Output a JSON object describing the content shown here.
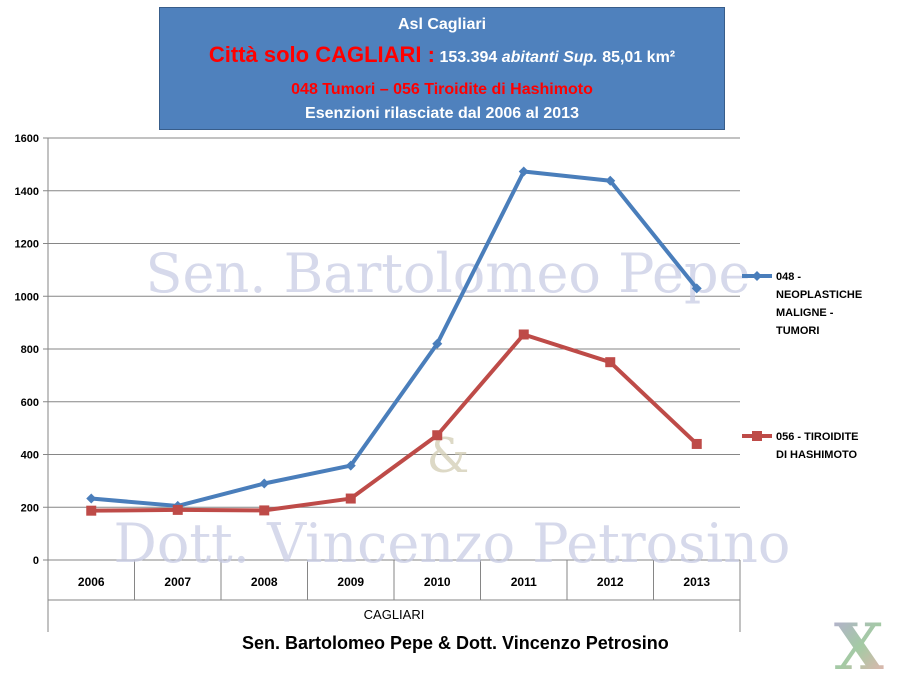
{
  "header": {
    "line1": "Asl Cagliari",
    "line2_red": "Città solo CAGLIARI :",
    "line2_pop": "153.394",
    "line2_abitanti": "abitanti Sup.",
    "line2_area": "85,01 km²",
    "line3": "048 Tumori – 056 Tiroidite di Hashimoto",
    "line4": "Esenzioni rilasciate dal 2006 al 2013"
  },
  "watermark": {
    "line1": "Sen. Bartolomeo Pepe",
    "amp": "&",
    "line2": "Dott. Vincenzo Petrosino"
  },
  "caption": "Sen. Bartolomeo Pepe & Dott. Vincenzo Petrosino",
  "logo_letter": "X",
  "colors": {
    "series1": "#4a7ebb",
    "series2": "#be4b48",
    "header_bg": "#4f81bd",
    "header_red": "#ff0000"
  },
  "chart_data": {
    "type": "line",
    "xlabel": "CAGLIARI",
    "ylabel": "",
    "categories": [
      "2006",
      "2007",
      "2008",
      "2009",
      "2010",
      "2011",
      "2012",
      "2013"
    ],
    "ylim": [
      0,
      1600
    ],
    "yticks": [
      0,
      200,
      400,
      600,
      800,
      1000,
      1200,
      1400,
      1600
    ],
    "grid": true,
    "legend_position": "right",
    "series": [
      {
        "name": "048 - NEOPLASTICHE MALIGNE - TUMORI",
        "legend_lines": [
          "048 -",
          "NEOPLASTICHE",
          "MALIGNE -",
          "TUMORI"
        ],
        "values": [
          233,
          205,
          290,
          358,
          820,
          1473,
          1438,
          1030
        ]
      },
      {
        "name": "056 - TIROIDITE DI HASHIMOTO",
        "legend_lines": [
          "056 - TIROIDITE",
          "DI HASHIMOTO"
        ],
        "values": [
          187,
          190,
          188,
          233,
          473,
          855,
          750,
          440
        ]
      }
    ]
  }
}
